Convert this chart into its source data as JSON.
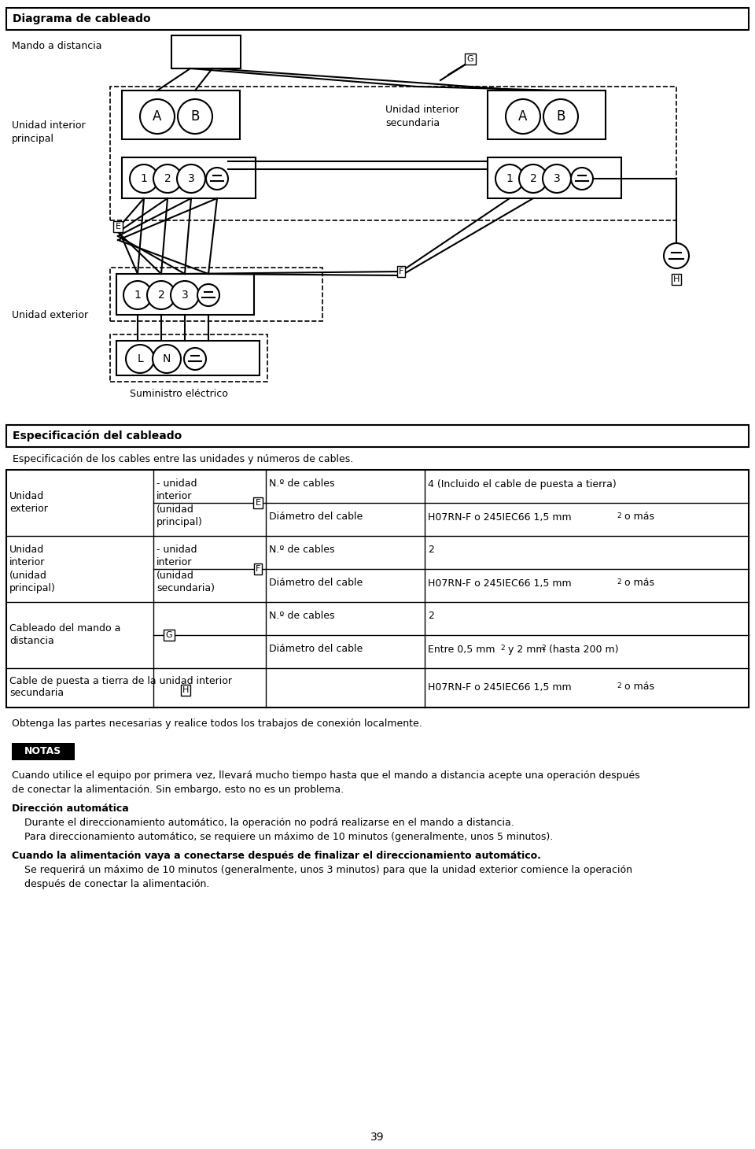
{
  "title_diagram": "Diagrama de cableado",
  "title_spec": "Especificación del cableado",
  "spec_intro": "Especificación de los cables entre las unidades y números de cables.",
  "label_mando": "Mando a distancia",
  "label_unidad_int_principal": "Unidad interior\nprincipal",
  "label_unidad_int_secundaria": "Unidad interior\nsecundaria",
  "label_unidad_ext": "Unidad exterior",
  "label_suministro": "Suministro eléctrico",
  "label_obtenga": "Obtenga las partes necesarias y realice todos los trabajos de conexión localmente.",
  "notas_title": "NOTAS",
  "notas_text1": "Cuando utilice el equipo por primera vez, llevará mucho tiempo hasta que el mando a distancia acepte una operación después\nde conectar la alimentación. Sin embargo, esto no es un problema.",
  "notas_bold1": "Dirección automática",
  "notas_text2": "    Durante el direccionamiento automático, la operación no podrá realizarse en el mando a distancia.\n    Para direccionamiento automático, se requiere un máximo de 10 minutos (generalmente, unos 5 minutos).",
  "notas_bold2": "Cuando la alimentación vaya a conectarse después de finalizar el direccionamiento automático.",
  "notas_text3": "    Se requerirá un máximo de 10 minutos (generalmente, unos 3 minutos) para que la unidad exterior comience la operación\n    después de conectar la alimentación.",
  "page_number": "39",
  "bg_color": "#ffffff"
}
